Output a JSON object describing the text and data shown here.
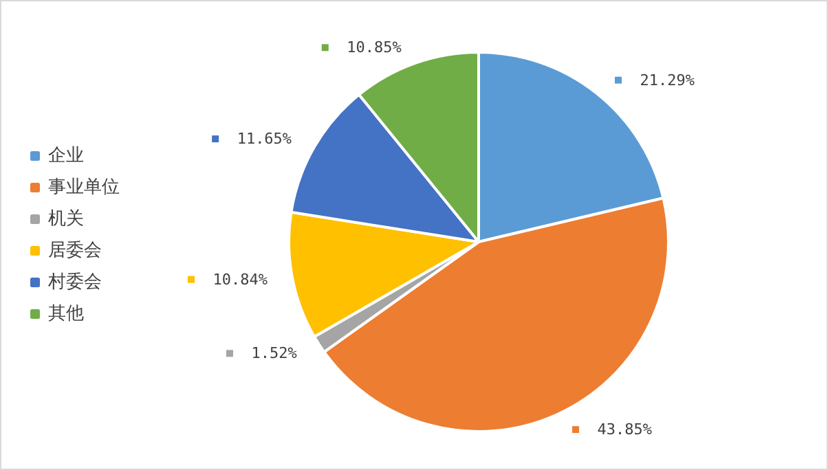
{
  "chart_data": {
    "type": "pie",
    "categories": [
      "企业",
      "事业单位",
      "机关",
      "居委会",
      "村委会",
      "其他"
    ],
    "values": [
      21.29,
      43.85,
      1.52,
      10.84,
      11.65,
      10.85
    ],
    "colors": [
      "#5b9bd5",
      "#ed7d31",
      "#a5a5a5",
      "#ffc000",
      "#4472c4",
      "#70ad47"
    ],
    "value_labels": [
      "21.29%",
      "43.85%",
      "1.52%",
      "10.84%",
      "11.65%",
      "10.85%"
    ],
    "legend": "left"
  }
}
